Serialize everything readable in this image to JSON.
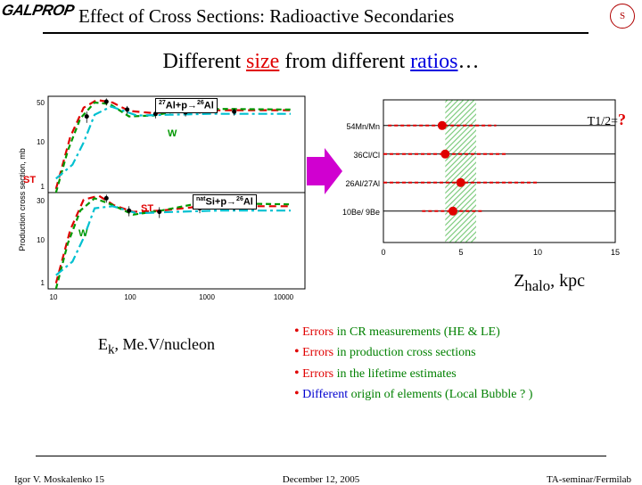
{
  "header": {
    "logo": "GALPROP",
    "title": "Effect of Cross Sections: Radioactive Secondaries",
    "seal": "S"
  },
  "subtitle": {
    "p1": "Different ",
    "size": "size",
    "p2": " from different ",
    "ratios": "ratios",
    "p3": "…"
  },
  "left_chart": {
    "type": "line",
    "y_label": "Production cross section, mb",
    "x_label": "Eₖ, Me.V/nucleon",
    "reaction1": {
      "pre": "27",
      "mid": "Al+p→",
      "post": "26",
      "tail": "Al"
    },
    "reaction2": {
      "pre": "nat",
      "mid": "Si+p→",
      "post": "26",
      "tail": "Al"
    },
    "legend_ST": "ST",
    "legend_W": "W",
    "xlim": [
      8,
      12000
    ],
    "ylim_top": [
      0.5,
      60
    ],
    "ylim_bot": [
      0.3,
      40
    ],
    "x_ticks": [
      10,
      100,
      1000,
      10000
    ],
    "top": {
      "st": [
        [
          10,
          0.6
        ],
        [
          15,
          8
        ],
        [
          22,
          34
        ],
        [
          32,
          50
        ],
        [
          50,
          44
        ],
        [
          80,
          29
        ],
        [
          160,
          26
        ],
        [
          400,
          29
        ],
        [
          1200,
          30
        ],
        [
          8000,
          30
        ]
      ],
      "w": [
        [
          10,
          0.5
        ],
        [
          14,
          4
        ],
        [
          20,
          20
        ],
        [
          30,
          44
        ],
        [
          46,
          41
        ],
        [
          80,
          22
        ],
        [
          160,
          23
        ],
        [
          400,
          31
        ],
        [
          1200,
          32
        ],
        [
          8000,
          31
        ]
      ],
      "ts": [
        [
          10,
          1
        ],
        [
          16,
          2
        ],
        [
          22,
          6
        ],
        [
          30,
          24
        ],
        [
          48,
          36
        ],
        [
          100,
          23
        ],
        [
          250,
          24
        ],
        [
          800,
          25
        ],
        [
          8000,
          25
        ]
      ],
      "data": [
        [
          24,
          22,
          6
        ],
        [
          42,
          46,
          8
        ],
        [
          76,
          31,
          6
        ],
        [
          170,
          25,
          5
        ],
        [
          400,
          27,
          5
        ],
        [
          600,
          30,
          5
        ],
        [
          1600,
          28,
          5
        ]
      ]
    },
    "bot": {
      "st": [
        [
          10,
          0.4
        ],
        [
          15,
          6
        ],
        [
          22,
          28
        ],
        [
          34,
          34
        ],
        [
          52,
          21
        ],
        [
          90,
          15
        ],
        [
          200,
          16
        ],
        [
          500,
          19
        ],
        [
          1500,
          20
        ],
        [
          8000,
          20
        ]
      ],
      "w": [
        [
          10,
          0.3
        ],
        [
          14,
          3
        ],
        [
          20,
          16
        ],
        [
          30,
          30
        ],
        [
          48,
          22
        ],
        [
          90,
          13
        ],
        [
          200,
          16
        ],
        [
          500,
          22
        ],
        [
          1500,
          23
        ],
        [
          8000,
          22
        ]
      ],
      "ts": [
        [
          10,
          0.6
        ],
        [
          16,
          1.2
        ],
        [
          22,
          4
        ],
        [
          30,
          18
        ],
        [
          50,
          20
        ],
        [
          100,
          14
        ],
        [
          300,
          15
        ],
        [
          1000,
          16
        ],
        [
          8000,
          16
        ]
      ],
      "data": [
        [
          42,
          30,
          6
        ],
        [
          80,
          16,
          4
        ],
        [
          190,
          15,
          4
        ],
        [
          600,
          18,
          4
        ],
        [
          1600,
          20,
          4
        ]
      ]
    },
    "colors": {
      "st": "#e00000",
      "w": "#009800",
      "ts": "#00c0d0",
      "data": "#000000"
    }
  },
  "right_chart": {
    "type": "scatter",
    "xlim": [
      0,
      15
    ],
    "x_ticks": [
      0,
      5,
      10,
      15
    ],
    "y_labels": [
      "54Mn/Mn",
      "36Cl/Cl",
      "26Al/27Al",
      "10Be/ 9Be"
    ],
    "y_positions": [
      0.82,
      0.62,
      0.42,
      0.22
    ],
    "band_x": [
      4,
      6
    ],
    "band_color": "#009800",
    "points": [
      {
        "y": 0.82,
        "x": 3.8,
        "err": 3.5
      },
      {
        "y": 0.62,
        "x": 4.0,
        "err": 4.0
      },
      {
        "y": 0.42,
        "x": 5.0,
        "err": 5.0
      },
      {
        "y": 0.22,
        "x": 4.5,
        "err": 2.0
      }
    ],
    "point_color": "#e00000",
    "axis_label": "Zhalo, kpc",
    "t12": "T1/2=",
    "t12_q": "?"
  },
  "bullets": [
    {
      "err": "Errors ",
      "rest": "in CR measurements (HE & LE)"
    },
    {
      "err": "Errors ",
      "rest": "in production cross sections"
    },
    {
      "err": "Errors ",
      "rest": "in the lifetime estimates"
    },
    {
      "diff": "Different ",
      "rest": "origin of elements (Local Bubble ? )"
    }
  ],
  "footer": {
    "left": "Igor V. Moskalenko  15",
    "center": "December 12, 2005",
    "right": "TA-seminar/Fermilab"
  }
}
